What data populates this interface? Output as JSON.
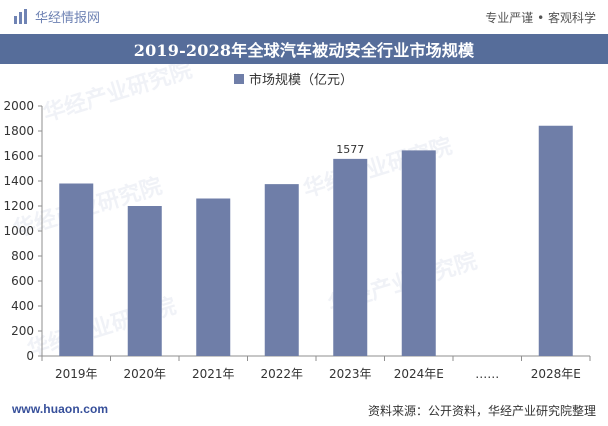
{
  "header": {
    "brand": "华经情报网",
    "slogan": "专业严谨 • 客观科学"
  },
  "title": "2019-2028年全球汽车被动安全行业市场规模",
  "legend": {
    "label": "市场规模（亿元）"
  },
  "watermarks": [
    "华经产业研究院",
    "华经产业研究院",
    "华经产业研究院",
    "华经产业研究院",
    "华经产业研究院"
  ],
  "footer": {
    "site": "www.huaon.com",
    "source": "资料来源：公开资料，华经产业研究院整理"
  },
  "colors": {
    "bar": "#6f7ea8",
    "title_bg": "#566d9a",
    "gridline": "#c9c9c9"
  },
  "chart_data": {
    "type": "bar",
    "title": "2019-2028年全球汽车被动安全行业市场规模",
    "ylabel": "",
    "xlabel": "",
    "ylim": [
      0,
      2000
    ],
    "yticks": [
      0,
      200,
      400,
      600,
      800,
      1000,
      1200,
      1400,
      1600,
      1800,
      2000
    ],
    "legend_position": "top-center",
    "grid": false,
    "categories": [
      "2019年",
      "2020年",
      "2021年",
      "2022年",
      "2023年",
      "2024年E",
      "……",
      "2028年E"
    ],
    "values": [
      1380,
      1200,
      1260,
      1375,
      1577,
      1645,
      null,
      1842
    ],
    "data_labels": [
      "",
      "",
      "",
      "",
      "1577",
      "",
      "",
      ""
    ],
    "series": [
      {
        "name": "市场规模（亿元）",
        "values": [
          1380,
          1200,
          1260,
          1375,
          1577,
          1645,
          null,
          1842
        ]
      }
    ]
  }
}
